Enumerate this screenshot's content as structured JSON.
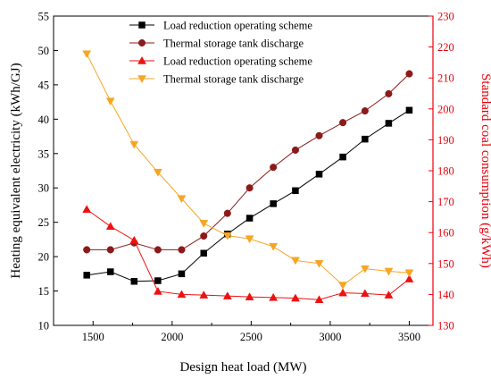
{
  "chart_data": {
    "type": "line",
    "x": [
      1460,
      1610,
      1760,
      1910,
      2060,
      2200,
      2350,
      2490,
      2640,
      2780,
      2930,
      3080,
      3220,
      3370,
      3500
    ],
    "xlabel": "Design heat load (MW)",
    "xlim": [
      1250,
      3650
    ],
    "xticks": [
      "1500",
      "2000",
      "2500",
      "3000",
      "3500"
    ],
    "xtick_values": [
      1500,
      2000,
      2500,
      3000,
      3500
    ],
    "y_left": {
      "label": "Heating equivalent electricity (kWh/GJ)",
      "lim": [
        10,
        55
      ],
      "ticks": [
        "10",
        "15",
        "20",
        "25",
        "30",
        "35",
        "40",
        "45",
        "50",
        "55"
      ],
      "tick_values": [
        10,
        15,
        20,
        25,
        30,
        35,
        40,
        45,
        50,
        55
      ],
      "color": "#000000"
    },
    "y_right": {
      "label": "Standard coal consumption (g/kWh)",
      "lim": [
        130,
        230
      ],
      "ticks": [
        "130",
        "140",
        "150",
        "160",
        "170",
        "180",
        "190",
        "200",
        "210",
        "220",
        "230"
      ],
      "tick_values": [
        130,
        140,
        150,
        160,
        170,
        180,
        190,
        200,
        210,
        220,
        230
      ],
      "color": "#e8000b"
    },
    "legend_position": "top",
    "series": [
      {
        "name": "Load reduction operating scheme",
        "axis": "left",
        "marker": "square",
        "color": "#000000",
        "values": [
          17.3,
          17.8,
          16.4,
          16.5,
          17.5,
          20.5,
          23.3,
          25.6,
          27.7,
          29.6,
          32.0,
          34.5,
          37.1,
          39.4,
          41.3
        ]
      },
      {
        "name": "Thermal storage tank discharge",
        "axis": "left",
        "marker": "circle",
        "color": "#8b1a1a",
        "values": [
          21.0,
          21.0,
          22.0,
          21.0,
          21.0,
          23.0,
          26.3,
          30.0,
          33.0,
          35.5,
          37.6,
          39.5,
          41.2,
          43.7,
          46.6
        ]
      },
      {
        "name": "Load reduction operating scheme",
        "axis": "right",
        "marker": "triangle-up",
        "color": "#ee1111",
        "values": [
          167.5,
          162.0,
          157.5,
          141.0,
          140.0,
          139.8,
          139.5,
          139.2,
          139.0,
          138.8,
          138.3,
          140.5,
          140.3,
          139.8,
          145.0
        ]
      },
      {
        "name": "Thermal storage tank discharge",
        "axis": "right",
        "marker": "triangle-down",
        "color": "#f5a623",
        "values": [
          217.8,
          202.5,
          188.5,
          179.5,
          171.0,
          163.0,
          159.0,
          158.0,
          155.5,
          151.0,
          150.0,
          143.0,
          148.3,
          147.5,
          147.0
        ]
      }
    ]
  }
}
